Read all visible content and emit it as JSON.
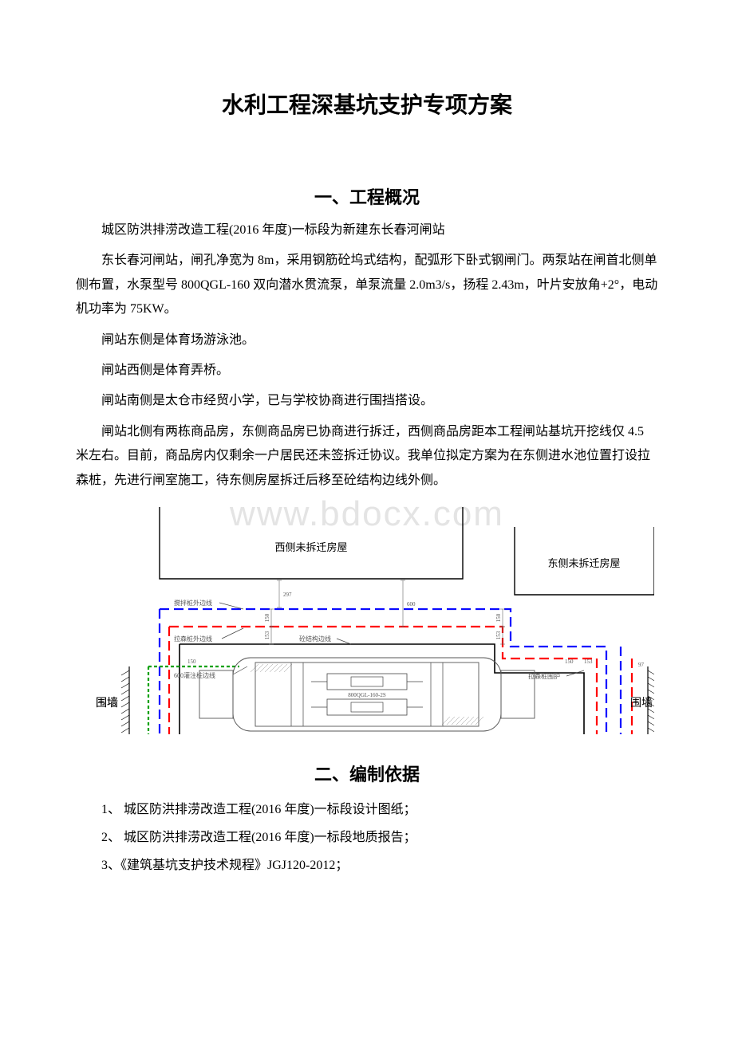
{
  "doc": {
    "title": "水利工程深基坑支护专项方案",
    "watermark": "www.bdocx.com"
  },
  "section1": {
    "heading": "一、工程概况",
    "p1": "城区防洪排涝改造工程(2016 年度)一标段为新建东长春河闸站",
    "p2": "东长春河闸站，闸孔净宽为 8m，采用钢筋砼坞式结构，配弧形下卧式钢闸门。两泵站在闸首北侧单侧布置，水泵型号 800QGL-160 双向潜水贯流泵，单泵流量 2.0m3/s，扬程 2.43m，叶片安放角+2°，电动机功率为 75KW。",
    "p3": "闸站东侧是体育场游泳池。",
    "p4": "闸站西侧是体育弄桥。",
    "p5": "闸站南侧是太仓市经贸小学，已与学校协商进行围挡搭设。",
    "p6": "闸站北侧有两栋商品房，东侧商品房已协商进行拆迁，西侧商品房距本工程闸站基坑开挖线仅 4.5 米左右。目前，商品房内仅剩余一户居民还未签拆迁协议。我单位拟定方案为在东侧进水池位置打设拉森桩，先进行闸室施工，待东侧房屋拆迁后移至砼结构边线外侧。"
  },
  "section2": {
    "heading": "二、编制依据",
    "item1": "1、 城区防洪排涝改造工程(2016 年度)一标段设计图纸；",
    "item2": "2、 城区防洪排涝改造工程(2016 年度)一标段地质报告；",
    "item3": "3、《建筑基坑支护技术规程》JGJ120-2012；"
  },
  "diagram": {
    "type": "technical-plan",
    "bg": "#ffffff",
    "colors": {
      "outline": "#000000",
      "mix_pile": "#0a0aff",
      "larsen_pile": "#ff0000",
      "struct_line": "#000000",
      "grout_pile": "#00a000",
      "hatch": "#777777",
      "callout": "#444444"
    },
    "labels": {
      "west_house": "西侧未拆迁房屋",
      "east_house": "东侧未拆迁房屋",
      "wall_left": "围墙",
      "wall_right": "围墙",
      "mix_pile_line": "搅拌桩外边线",
      "larsen_pile_line": "拉森桩外边线",
      "struct_line": "砼结构边线",
      "grout_pile_line": "600灌注桩边线",
      "larsen_guard": "拉森桩围护",
      "n297": "297",
      "n600": "600",
      "n150": "150",
      "n153": "153",
      "n97": "97",
      "pump_model": "800QGL-160-2S"
    },
    "dash": {
      "long": "12 6",
      "mid": "8 5",
      "dot": "4 3"
    },
    "lw": {
      "outline": 1.4,
      "pile_thick": 2.2,
      "pile_med": 1.6,
      "thin": 0.9
    }
  }
}
